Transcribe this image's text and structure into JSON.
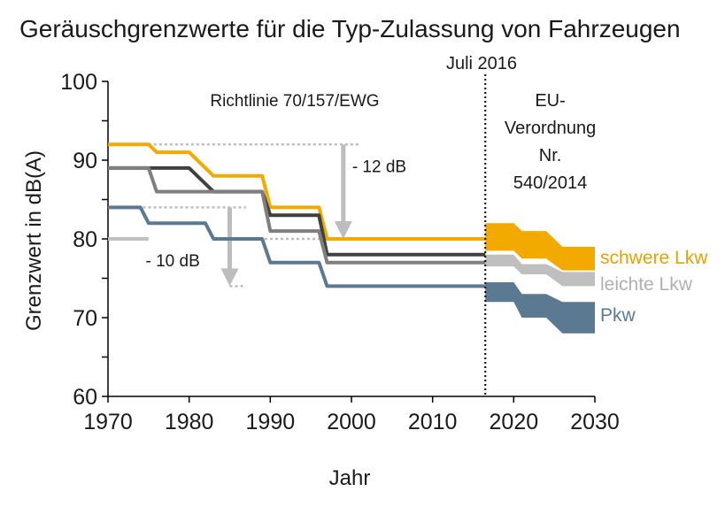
{
  "chart_data": {
    "type": "line",
    "title": "Geräuschgrenzwerte für die Typ-Zulassung von Fahrzeugen",
    "xlabel": "Jahr",
    "ylabel": "Grenzwert in dB(A)",
    "xlim": [
      1970,
      2030
    ],
    "ylim": [
      60,
      100
    ],
    "x_ticks": [
      "1970",
      "1980",
      "1990",
      "2000",
      "2010",
      "2020",
      "2030"
    ],
    "y_ticks": [
      "60",
      "70",
      "80",
      "90",
      "100"
    ],
    "grid": false,
    "legend_position": "right",
    "marker_label": "Juli 2016",
    "marker_year": 2016.5,
    "region_labels": {
      "left": "Richtlinie 70/157/EWG",
      "right_lines": [
        "EU-",
        "Verordnung",
        "Nr.",
        "540/2014"
      ]
    },
    "annotations": [
      {
        "text": "- 12 dB",
        "from": 92,
        "to": 80,
        "arrow_year": 1999,
        "line_from_year": 1975,
        "line_to_year": 2001
      },
      {
        "text": "- 10 dB",
        "from": 84,
        "to": 74,
        "arrow_year": 1985,
        "line_from_year": 1973,
        "line_to_year": 1987
      }
    ],
    "series": [
      {
        "name": "schwere Lkw",
        "color": "#F2A900",
        "label_color": "#E8A200",
        "points": [
          [
            1970,
            92
          ],
          [
            1975,
            92
          ],
          [
            1976,
            91
          ],
          [
            1980,
            91
          ],
          [
            1983,
            88
          ],
          [
            1989,
            88
          ],
          [
            1990,
            84
          ],
          [
            1996,
            84
          ],
          [
            1997,
            80
          ],
          [
            2016.5,
            80
          ]
        ],
        "band": [
          [
            2016.5,
            78.5,
            82
          ],
          [
            2020,
            78.5,
            82
          ],
          [
            2021,
            77.5,
            81
          ],
          [
            2024,
            77.5,
            81
          ],
          [
            2026,
            76,
            79
          ],
          [
            2030,
            76,
            79
          ]
        ]
      },
      {
        "name": "",
        "color": "#404040",
        "points": [
          [
            1970,
            89
          ],
          [
            1980,
            89
          ],
          [
            1983,
            86
          ],
          [
            1989,
            86
          ],
          [
            1990,
            83
          ],
          [
            1996,
            83
          ],
          [
            1997,
            78
          ],
          [
            2016.5,
            78
          ]
        ]
      },
      {
        "name": "",
        "color": "#7F7F7F",
        "points": [
          [
            1970,
            89
          ],
          [
            1975,
            89
          ],
          [
            1976,
            86
          ],
          [
            1989,
            86
          ],
          [
            1990,
            81
          ],
          [
            1996,
            81
          ],
          [
            1997,
            77
          ],
          [
            2016.5,
            77
          ]
        ]
      },
      {
        "name": "leichte Lkw",
        "color": "#BFBFBF",
        "label_color": "#B0B0B0",
        "points": [
          [
            1970,
            80
          ],
          [
            1975,
            80
          ]
        ],
        "band": [
          [
            2016.5,
            76.5,
            78
          ],
          [
            2020,
            76.5,
            78
          ],
          [
            2021,
            75.5,
            76.8
          ],
          [
            2024,
            75.5,
            76.8
          ],
          [
            2026,
            74,
            75.8
          ],
          [
            2030,
            74,
            75.8
          ]
        ]
      },
      {
        "name": "Pkw",
        "color": "#5B7A92",
        "label_color": "#5B7A92",
        "points": [
          [
            1970,
            84
          ],
          [
            1974,
            84
          ],
          [
            1975,
            82
          ],
          [
            1982,
            82
          ],
          [
            1983,
            80
          ],
          [
            1989,
            80
          ],
          [
            1990,
            77
          ],
          [
            1996,
            77
          ],
          [
            1997,
            74
          ],
          [
            2016.5,
            74
          ]
        ],
        "band": [
          [
            2016.5,
            72,
            74.5
          ],
          [
            2020,
            72,
            74.5
          ],
          [
            2021,
            70,
            73
          ],
          [
            2024,
            70,
            73
          ],
          [
            2026,
            68,
            72
          ],
          [
            2030,
            68,
            72
          ]
        ]
      }
    ]
  }
}
